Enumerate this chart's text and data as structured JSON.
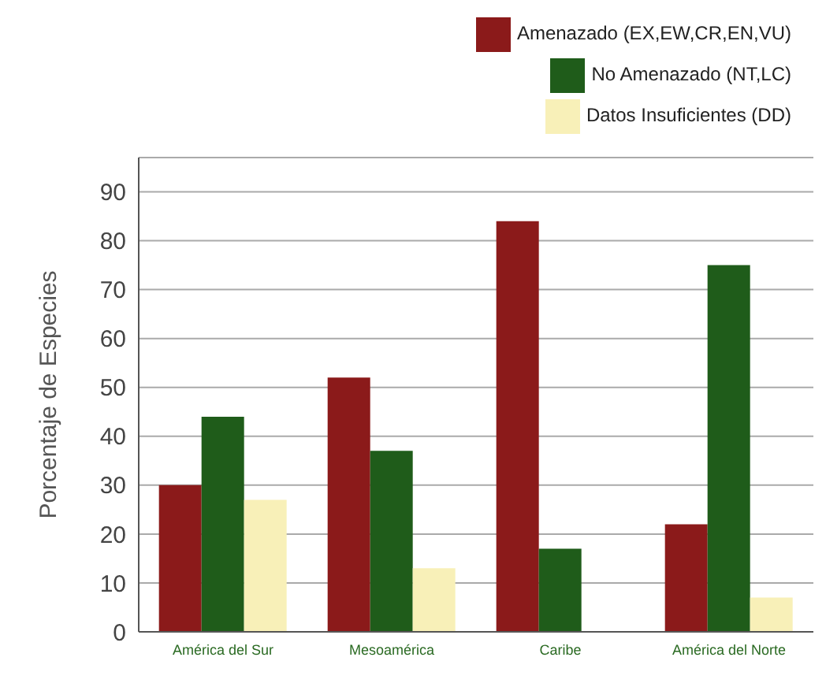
{
  "chart_data": {
    "type": "bar",
    "ylabel": "Porcentaje de Especies",
    "categories": [
      "América del Sur",
      "Mesoamérica",
      "Caribe",
      "América del Norte"
    ],
    "series": [
      {
        "name": "Amenazado (EX,EW,CR,EN,VU)",
        "color": "#8b1a1a",
        "values": [
          30,
          52,
          84,
          22
        ]
      },
      {
        "name": "No Amenazado (NT,LC)",
        "color": "#1f5c1a",
        "values": [
          44,
          37,
          17,
          75
        ]
      },
      {
        "name": "Datos Insuficientes (DD)",
        "color": "#f8f0b8",
        "values": [
          27,
          13,
          null,
          7
        ]
      }
    ],
    "ylim": [
      0,
      97
    ],
    "yticks": [
      0,
      10,
      20,
      30,
      40,
      50,
      60,
      70,
      80,
      90
    ],
    "grid": "y",
    "legend": "top right"
  }
}
